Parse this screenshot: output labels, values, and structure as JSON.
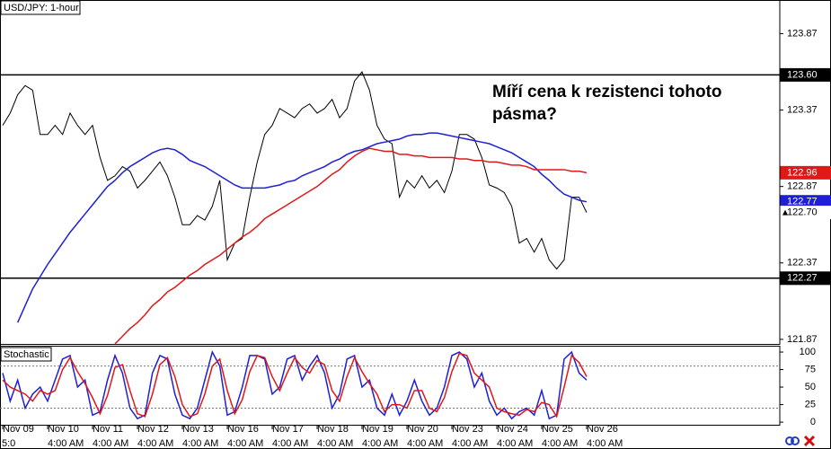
{
  "chart_data": [
    {
      "type": "line",
      "title": "USD/JPY: 1-hour",
      "annotation": "Míří cena k rezistenci tohoto pásma?",
      "categories": [
        "Nov 09",
        null,
        null,
        null,
        null,
        null,
        "Nov 10",
        null,
        null,
        null,
        null,
        null,
        "Nov 11",
        null,
        null,
        null,
        null,
        null,
        "Nov 12",
        null,
        null,
        null,
        null,
        null,
        "Nov 13",
        null,
        null,
        null,
        null,
        null,
        "Nov 16",
        null,
        null,
        null,
        null,
        null,
        "Nov 17",
        null,
        null,
        null,
        null,
        null,
        "Nov 18",
        null,
        null,
        null,
        null,
        null,
        "Nov 19",
        null,
        null,
        null,
        null,
        null,
        "Nov 20",
        null,
        null,
        null,
        null,
        null,
        "Nov 23",
        null,
        null,
        null,
        null,
        null,
        "Nov 24",
        null,
        null,
        null,
        null,
        null,
        "Nov 25",
        null,
        null,
        null,
        null,
        null,
        "Nov 26"
      ],
      "time_labels": [
        "5:0",
        null,
        null,
        null,
        null,
        null,
        "4:00 AM",
        null,
        null,
        null,
        null,
        null,
        "4:00 AM",
        null,
        null,
        null,
        null,
        null,
        "4:00 AM",
        null,
        null,
        null,
        null,
        null,
        "4:00 AM",
        null,
        null,
        null,
        null,
        null,
        "4:00 AM",
        null,
        null,
        null,
        null,
        null,
        "4:00 AM",
        null,
        null,
        null,
        null,
        null,
        "4:00 AM",
        null,
        null,
        null,
        null,
        null,
        "4:00 AM",
        null,
        null,
        null,
        null,
        null,
        "4:00 AM",
        null,
        null,
        null,
        null,
        null,
        "4:00 AM",
        null,
        null,
        null,
        null,
        null,
        "4:00 AM",
        null,
        null,
        null,
        null,
        null,
        "4:00 AM",
        null,
        null,
        null,
        null,
        null,
        "4:00 AM"
      ],
      "series": [
        {
          "color": "#000000",
          "values": [
            123.27,
            123.35,
            123.47,
            123.53,
            123.5,
            123.21,
            123.21,
            123.27,
            123.21,
            123.35,
            123.27,
            123.21,
            123.27,
            123.06,
            122.91,
            122.94,
            123.0,
            122.97,
            122.86,
            122.91,
            122.97,
            123.03,
            122.94,
            122.8,
            122.62,
            122.62,
            122.68,
            122.65,
            122.74,
            122.91,
            122.39,
            122.5,
            122.53,
            122.8,
            123.03,
            123.21,
            123.27,
            123.38,
            123.35,
            123.32,
            123.38,
            123.41,
            123.35,
            123.38,
            123.44,
            123.32,
            123.38,
            123.56,
            123.62,
            123.5,
            123.27,
            123.18,
            123.15,
            122.8,
            122.91,
            122.86,
            122.94,
            122.86,
            122.91,
            122.83,
            122.97,
            123.21,
            123.21,
            123.18,
            123.06,
            122.88,
            122.86,
            122.83,
            122.74,
            122.5,
            122.53,
            122.44,
            122.53,
            122.39,
            122.33,
            122.39,
            122.8,
            122.8,
            122.7
          ]
        },
        {
          "color": "#1f1fd6",
          "values": [
            null,
            null,
            121.98,
            122.09,
            122.2,
            122.28,
            122.36,
            122.43,
            122.5,
            122.57,
            122.63,
            122.69,
            122.75,
            122.81,
            122.87,
            122.91,
            122.96,
            123.0,
            123.03,
            123.06,
            123.09,
            123.11,
            123.12,
            123.11,
            123.08,
            123.04,
            123.02,
            123.0,
            122.97,
            122.94,
            122.91,
            122.88,
            122.86,
            122.86,
            122.86,
            122.86,
            122.87,
            122.88,
            122.9,
            122.91,
            122.94,
            122.96,
            122.98,
            123.0,
            123.03,
            123.05,
            123.08,
            123.1,
            123.11,
            123.13,
            123.15,
            123.16,
            123.17,
            123.18,
            123.2,
            123.21,
            123.21,
            123.22,
            123.22,
            123.21,
            123.2,
            123.19,
            123.18,
            123.17,
            123.16,
            123.15,
            123.13,
            123.11,
            123.09,
            123.06,
            123.03,
            123.0,
            122.95,
            122.91,
            122.86,
            122.82,
            122.8,
            122.78,
            122.77
          ]
        },
        {
          "color": "#e01818",
          "values": [
            null,
            null,
            null,
            null,
            null,
            null,
            null,
            null,
            null,
            null,
            null,
            null,
            null,
            null,
            null,
            121.84,
            121.89,
            121.94,
            121.98,
            122.03,
            122.09,
            122.13,
            122.18,
            122.21,
            122.25,
            122.29,
            122.32,
            122.36,
            122.39,
            122.42,
            122.46,
            122.5,
            122.54,
            122.57,
            122.61,
            122.66,
            122.69,
            122.72,
            122.75,
            122.78,
            122.81,
            122.84,
            122.87,
            122.91,
            122.95,
            122.98,
            123.03,
            123.07,
            123.1,
            123.12,
            123.11,
            123.1,
            123.1,
            123.08,
            123.08,
            123.07,
            123.07,
            123.06,
            123.06,
            123.06,
            123.06,
            123.05,
            123.05,
            123.04,
            123.04,
            123.03,
            123.03,
            123.02,
            123.01,
            123.01,
            123.0,
            122.98,
            122.98,
            122.98,
            122.98,
            122.98,
            122.97,
            122.97,
            122.96
          ]
        }
      ],
      "ylim": [
        121.84,
        124.09
      ],
      "yticks": [
        123.87,
        123.37,
        122.87,
        122.37,
        121.87
      ],
      "price_labels": [
        {
          "value": 123.6,
          "label": "123.60",
          "color": "#000000",
          "text_color": "#ffffff",
          "line": true
        },
        {
          "value": 122.96,
          "label": "122.96",
          "color": "#e01818",
          "text_color": "#ffffff"
        },
        {
          "value": 122.77,
          "label": "122.77",
          "color": "#1f1fd6",
          "text_color": "#ffffff"
        },
        {
          "value": 122.7,
          "label": "122.70",
          "color": "#ffffff",
          "text_color": "#000000",
          "arrow": true
        },
        {
          "value": 122.27,
          "label": "122.27",
          "color": "#000000",
          "text_color": "#ffffff",
          "line": true
        }
      ]
    },
    {
      "type": "line",
      "title": "Stochastic",
      "series": [
        {
          "color": "#1f1fd6",
          "values": [
            70,
            30,
            60,
            20,
            40,
            50,
            30,
            60,
            90,
            95,
            50,
            60,
            10,
            15,
            60,
            95,
            70,
            20,
            5,
            10,
            70,
            95,
            90,
            40,
            10,
            5,
            20,
            60,
            100,
            80,
            10,
            15,
            50,
            95,
            95,
            90,
            40,
            50,
            90,
            95,
            60,
            80,
            95,
            70,
            20,
            40,
            90,
            95,
            50,
            60,
            20,
            10,
            40,
            10,
            30,
            60,
            30,
            10,
            20,
            50,
            95,
            100,
            90,
            50,
            70,
            30,
            10,
            20,
            5,
            15,
            20,
            10,
            45,
            5,
            10,
            90,
            100,
            70,
            60
          ]
        },
        {
          "color": "#e01818",
          "values": [
            60,
            50,
            45,
            40,
            30,
            45,
            40,
            45,
            75,
            92,
            72,
            55,
            35,
            12,
            38,
            78,
            82,
            45,
            12,
            8,
            40,
            82,
            92,
            65,
            25,
            8,
            12,
            40,
            80,
            90,
            45,
            12,
            32,
            72,
            95,
            92,
            65,
            45,
            70,
            92,
            78,
            70,
            88,
            82,
            45,
            30,
            65,
            92,
            72,
            55,
            40,
            15,
            25,
            25,
            20,
            45,
            45,
            20,
            15,
            35,
            72,
            98,
            95,
            70,
            60,
            50,
            20,
            15,
            12,
            10,
            18,
            15,
            28,
            25,
            8,
            50,
            95,
            85,
            65
          ]
        }
      ],
      "ylim": [
        -5,
        109
      ],
      "yticks": [
        100,
        75,
        50,
        25,
        0
      ],
      "levels": [
        80,
        20
      ]
    }
  ]
}
